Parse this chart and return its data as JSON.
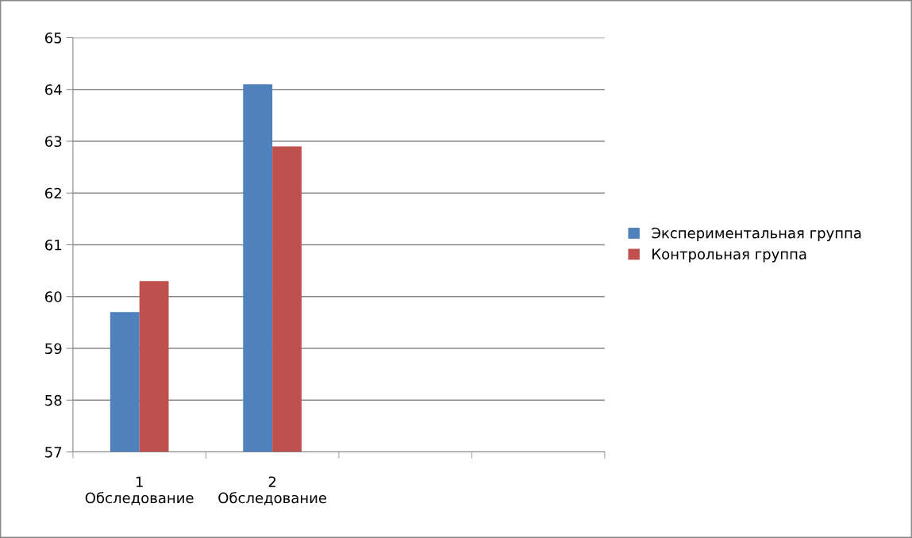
{
  "chart_data": {
    "type": "bar",
    "categories": [
      "1\nОбследование",
      "2\nОбследование",
      null,
      null
    ],
    "series": [
      {
        "name": "Экспериментальная группа",
        "color": "#4f81bd",
        "values": [
          59.7,
          64.1,
          null,
          null
        ]
      },
      {
        "name": "Контрольная группа",
        "color": "#c0504d",
        "values": [
          60.3,
          62.9,
          null,
          null
        ]
      }
    ],
    "ylim": [
      57,
      65
    ],
    "yticks": [
      57,
      58,
      59,
      60,
      61,
      62,
      63,
      64,
      65
    ],
    "grid": "y",
    "legend": "right"
  }
}
